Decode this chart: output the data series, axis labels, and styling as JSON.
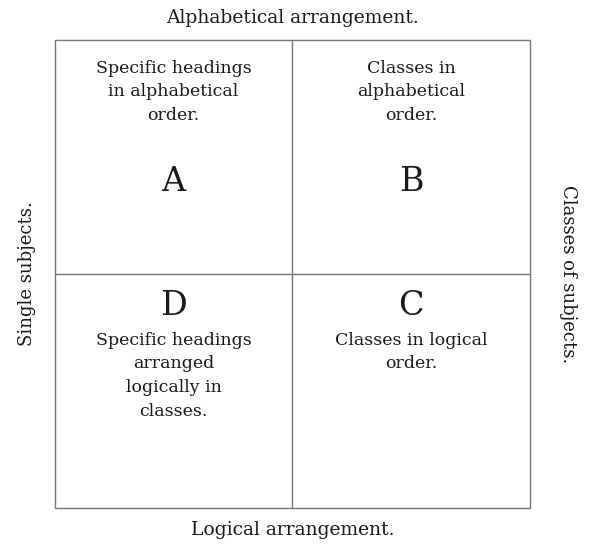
{
  "top_label": "Alphabetical arrangement.",
  "bottom_label": "Logical arrangement.",
  "left_label": "Single subjects.",
  "right_label": "Classes of subjects.",
  "cell_A_letter": "A",
  "cell_B_letter": "B",
  "cell_C_letter": "C",
  "cell_D_letter": "D",
  "cell_A_text": "Specific headings\nin alphabetical\norder.",
  "cell_B_text": "Classes in\nalphabetical\norder.",
  "cell_C_text": "Classes in logical\norder.",
  "cell_D_text": "Specific headings\narranged\nlogically in\nclasses.",
  "bg_color": "#ffffff",
  "text_color": "#1a1a1a",
  "line_color": "#777777",
  "font_size_label": 13.5,
  "font_size_cell_text": 12.5,
  "font_size_letter": 24,
  "font_size_axis_label": 13
}
